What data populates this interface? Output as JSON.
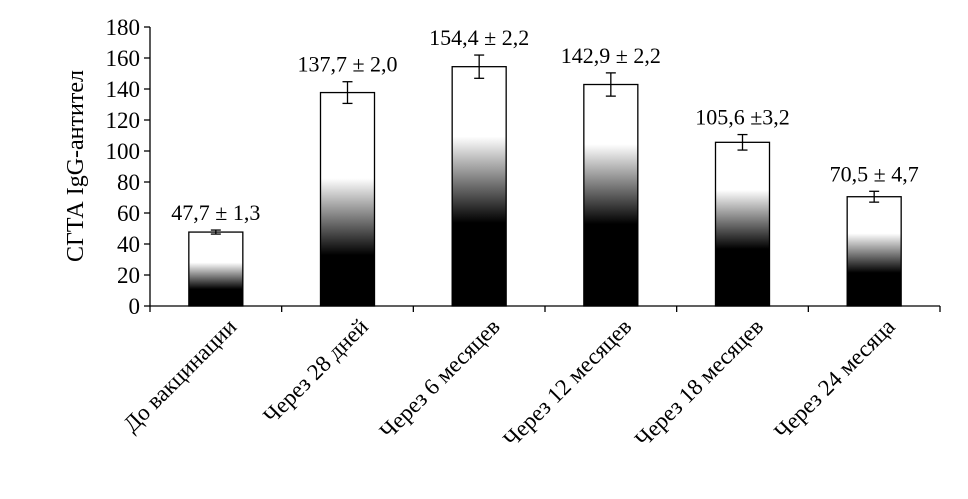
{
  "chart_data": {
    "type": "bar",
    "title": "",
    "xlabel": "",
    "ylabel": "СГТА IgG-антител",
    "ylim": [
      0,
      180
    ],
    "yticks": [
      0,
      20,
      40,
      60,
      80,
      100,
      120,
      140,
      160,
      180
    ],
    "grid": false,
    "categories": [
      "До вакцинации",
      "Через 28 дней",
      "Через 6 месяцев",
      "Через 12 месяцев",
      "Через 18 месяцев",
      "Через 24 месяца"
    ],
    "values": [
      47.7,
      137.7,
      154.4,
      142.9,
      105.6,
      70.5
    ],
    "errors": [
      1.3,
      2.0,
      2.2,
      2.2,
      3.2,
      4.7
    ],
    "error_bars_drawn": [
      1.3,
      7.0,
      7.5,
      7.5,
      5.0,
      3.5
    ],
    "data_labels": [
      "47,7 ± 1,3",
      "137,7 ± 2,0",
      "154,4 ± 2,2",
      "142,9 ± 2,2",
      "105,6 ±3,2",
      "70,5 ± 4,7"
    ],
    "bar_fill": "white-top / black-bottom vertical gradient",
    "colors": {
      "bar_outline": "#000000",
      "bar_top": "#ffffff",
      "bar_bottom": "#000000",
      "axis": "#000000"
    }
  }
}
